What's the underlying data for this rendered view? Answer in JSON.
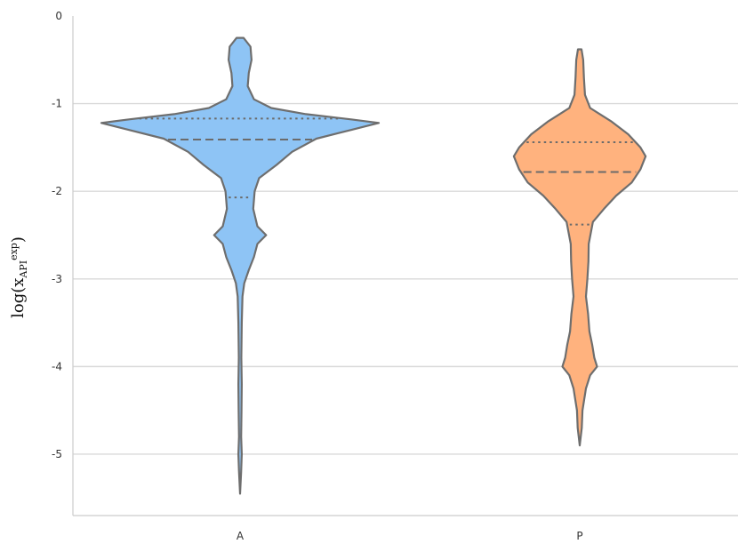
{
  "chart_data": {
    "type": "violin",
    "ylabel": {
      "prefix": "log(x",
      "subscript": "API",
      "superscript": "exp",
      "suffix": ")"
    },
    "ylim": [
      -5.7,
      0
    ],
    "yticks": [
      0,
      -1,
      -2,
      -3,
      -4,
      -5
    ],
    "ytick_labels": [
      "0",
      "-1",
      "-2",
      "-3",
      "-4",
      "-5"
    ],
    "grid": true,
    "categories": [
      "A",
      "P"
    ],
    "series": [
      {
        "category": "A",
        "color": "#8ec4f5",
        "edge_color": "#6e6e6e",
        "y_range": [
          -5.45,
          -0.25
        ],
        "quartiles": {
          "q1": -2.07,
          "median": -1.41,
          "q3": -1.17
        },
        "profile": [
          [
            -0.25,
            0.1
          ],
          [
            -0.35,
            0.3
          ],
          [
            -0.5,
            0.33
          ],
          [
            -0.65,
            0.25
          ],
          [
            -0.8,
            0.22
          ],
          [
            -0.95,
            0.4
          ],
          [
            -1.05,
            0.9
          ],
          [
            -1.12,
            1.9
          ],
          [
            -1.18,
            3.2
          ],
          [
            -1.22,
            4.0
          ],
          [
            -1.3,
            3.2
          ],
          [
            -1.4,
            2.2
          ],
          [
            -1.55,
            1.5
          ],
          [
            -1.7,
            1.05
          ],
          [
            -1.85,
            0.55
          ],
          [
            -2.0,
            0.42
          ],
          [
            -2.2,
            0.38
          ],
          [
            -2.4,
            0.5
          ],
          [
            -2.5,
            0.75
          ],
          [
            -2.6,
            0.5
          ],
          [
            -2.75,
            0.4
          ],
          [
            -2.9,
            0.25
          ],
          [
            -3.05,
            0.12
          ],
          [
            -3.2,
            0.07
          ],
          [
            -3.5,
            0.05
          ],
          [
            -3.9,
            0.035
          ],
          [
            -4.2,
            0.05
          ],
          [
            -4.5,
            0.04
          ],
          [
            -4.8,
            0.03
          ],
          [
            -5.0,
            0.05
          ],
          [
            -5.2,
            0.03
          ],
          [
            -5.45,
            0.0
          ]
        ]
      },
      {
        "category": "P",
        "color": "#ffb27e",
        "edge_color": "#6e6e6e",
        "y_range": [
          -4.9,
          -0.38
        ],
        "quartiles": {
          "q1": -2.38,
          "median": -1.78,
          "q3": -1.44
        },
        "profile": [
          [
            -0.38,
            0.05
          ],
          [
            -0.5,
            0.1
          ],
          [
            -0.7,
            0.12
          ],
          [
            -0.9,
            0.15
          ],
          [
            -1.05,
            0.3
          ],
          [
            -1.2,
            0.9
          ],
          [
            -1.35,
            1.4
          ],
          [
            -1.5,
            1.75
          ],
          [
            -1.6,
            1.9
          ],
          [
            -1.75,
            1.75
          ],
          [
            -1.9,
            1.5
          ],
          [
            -2.05,
            1.05
          ],
          [
            -2.2,
            0.7
          ],
          [
            -2.35,
            0.38
          ],
          [
            -2.6,
            0.26
          ],
          [
            -2.8,
            0.25
          ],
          [
            -3.0,
            0.22
          ],
          [
            -3.2,
            0.18
          ],
          [
            -3.4,
            0.24
          ],
          [
            -3.6,
            0.28
          ],
          [
            -3.75,
            0.36
          ],
          [
            -3.9,
            0.42
          ],
          [
            -4.0,
            0.5
          ],
          [
            -4.1,
            0.3
          ],
          [
            -4.25,
            0.18
          ],
          [
            -4.5,
            0.08
          ],
          [
            -4.7,
            0.06
          ],
          [
            -4.9,
            0.0
          ]
        ]
      }
    ]
  }
}
